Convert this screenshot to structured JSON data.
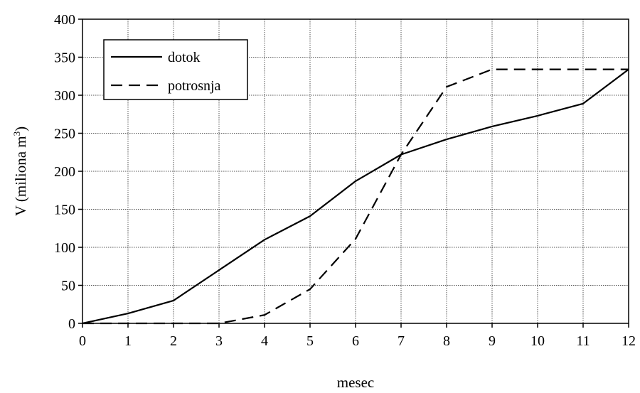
{
  "chart_data": {
    "type": "line",
    "xlabel": "mesec",
    "ylabel_main": "V (miliona m",
    "ylabel_sup": "3",
    "ylabel_close": ")",
    "xlim": [
      0,
      12
    ],
    "ylim": [
      0,
      400
    ],
    "x_ticks": [
      0,
      1,
      2,
      3,
      4,
      5,
      6,
      7,
      8,
      9,
      10,
      11,
      12
    ],
    "y_ticks": [
      0,
      50,
      100,
      150,
      200,
      250,
      300,
      350,
      400
    ],
    "grid": true,
    "legend_position": "top-left",
    "series": [
      {
        "name": "dotok",
        "style": "solid",
        "color": "#000000",
        "x": [
          0,
          1,
          2,
          3,
          4,
          5,
          6,
          7,
          8,
          9,
          10,
          11,
          12
        ],
        "values": [
          0,
          13,
          30,
          70,
          110,
          141,
          187,
          222,
          242,
          259,
          273,
          289,
          334
        ]
      },
      {
        "name": "potrosnja",
        "style": "dashed",
        "color": "#000000",
        "x": [
          0,
          1,
          2,
          3,
          4,
          5,
          6,
          7,
          8,
          9,
          10,
          11,
          12
        ],
        "values": [
          0,
          0,
          0,
          0,
          11,
          45,
          111,
          222,
          311,
          334,
          334,
          334,
          334
        ]
      }
    ]
  }
}
